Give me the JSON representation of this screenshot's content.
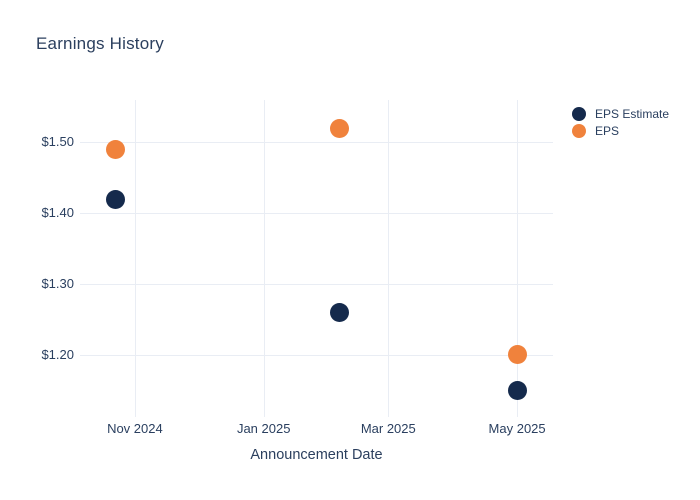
{
  "chart_data": {
    "type": "scatter",
    "title": "Earnings History",
    "xlabel": "Announcement Date",
    "ylabel": "",
    "grid": true,
    "legend_position": "top-right",
    "x_range": [
      "2024-10-06",
      "2025-05-18"
    ],
    "y_range": [
      1.112,
      1.56
    ],
    "x_ticks": [
      {
        "date": "2024-11-01",
        "label": "Nov 2024"
      },
      {
        "date": "2025-01-01",
        "label": "Jan 2025"
      },
      {
        "date": "2025-03-01",
        "label": "Mar 2025"
      },
      {
        "date": "2025-05-01",
        "label": "May 2025"
      }
    ],
    "y_ticks": [
      {
        "value": 1.2,
        "label": "$1.20"
      },
      {
        "value": 1.3,
        "label": "$1.30"
      },
      {
        "value": 1.4,
        "label": "$1.40"
      },
      {
        "value": 1.5,
        "label": "$1.50"
      }
    ],
    "series": [
      {
        "name": "EPS Estimate",
        "color": "#152a4c",
        "marker_size": 19,
        "points": [
          {
            "date": "2024-10-23",
            "value": 1.42
          },
          {
            "date": "2025-02-06",
            "value": 1.26
          },
          {
            "date": "2025-05-01",
            "value": 1.15
          }
        ]
      },
      {
        "name": "EPS",
        "color": "#f0823c",
        "marker_size": 19,
        "points": [
          {
            "date": "2024-10-23",
            "value": 1.49
          },
          {
            "date": "2025-02-06",
            "value": 1.52
          },
          {
            "date": "2025-05-01",
            "value": 1.2
          }
        ]
      }
    ],
    "colors": {
      "title_text": "#2b3f5e",
      "tick_text": "#2a3f5f",
      "gridline": "#e9edf4",
      "background": "#ffffff"
    }
  }
}
